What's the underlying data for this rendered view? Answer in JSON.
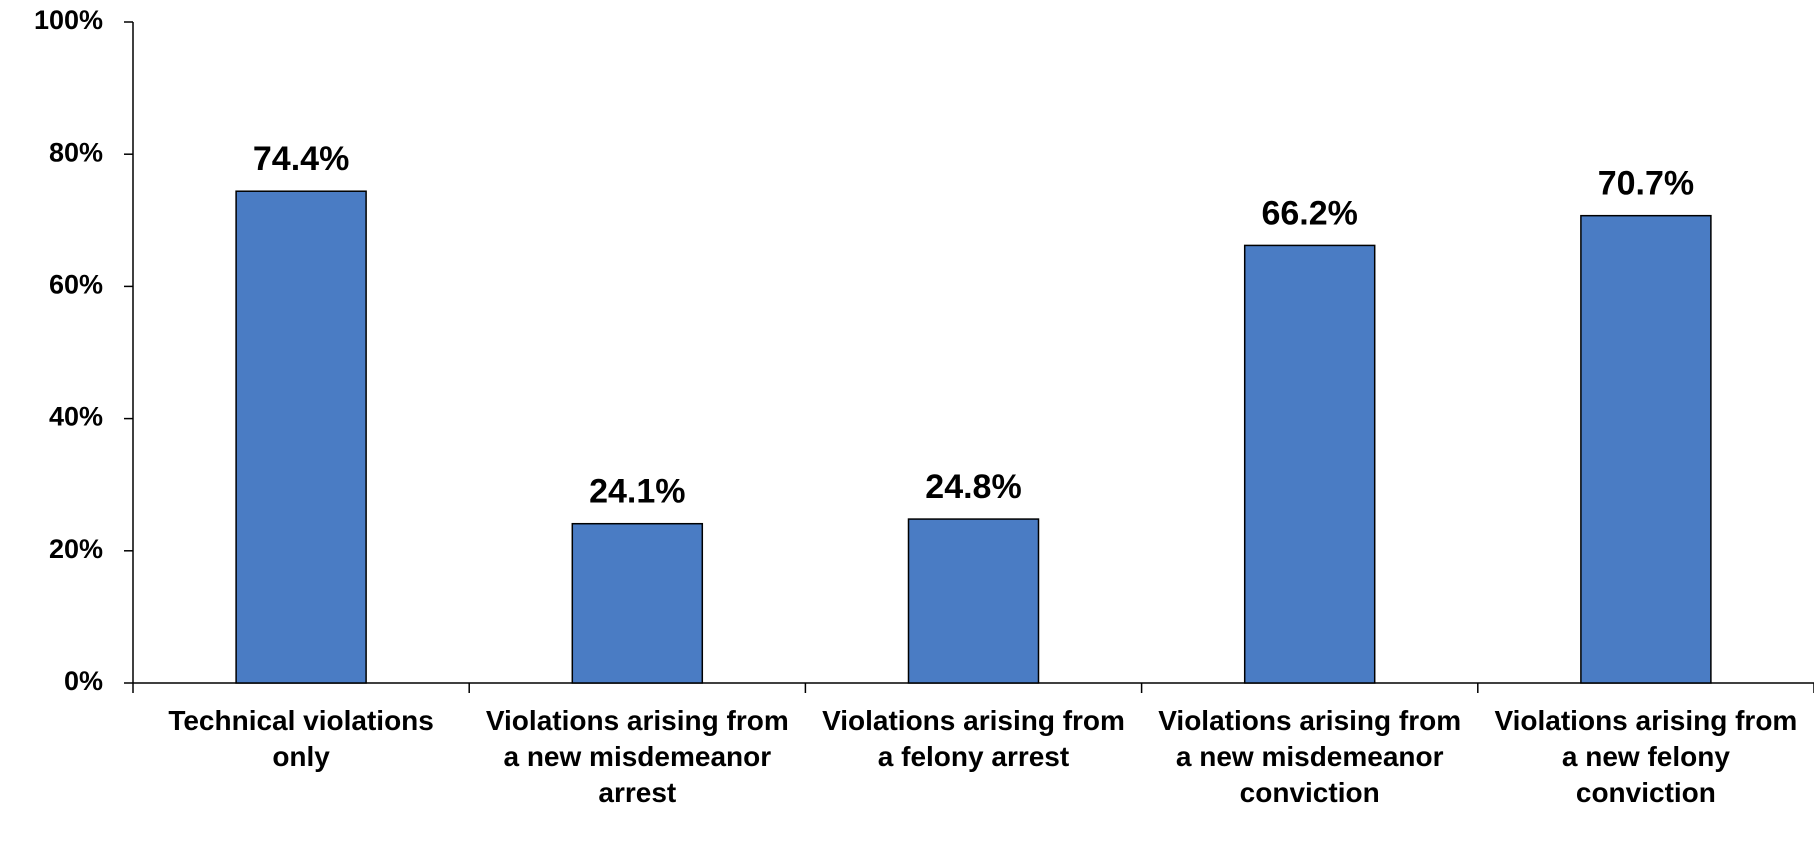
{
  "chart_data": {
    "type": "bar",
    "categories": [
      "Technical violations only",
      "Violations arising from a new misdemeanor arrest",
      "Violations arising from a felony arrest",
      "Violations arising from a new misdemeanor conviction",
      "Violations arising from a new felony conviction"
    ],
    "values": [
      74.4,
      24.1,
      24.8,
      66.2,
      70.7
    ],
    "value_labels": [
      "74.4%",
      "24.1%",
      "24.8%",
      "66.2%",
      "70.7%"
    ],
    "color": "#4a7cc4",
    "ylim": [
      0,
      100
    ],
    "yticks": [
      {
        "value": 0,
        "label": "0%"
      },
      {
        "value": 20,
        "label": "20%"
      },
      {
        "value": 40,
        "label": "40%"
      },
      {
        "value": 60,
        "label": "60%"
      },
      {
        "value": 80,
        "label": "80%"
      },
      {
        "value": 100,
        "label": "100%"
      }
    ],
    "grid": false
  }
}
